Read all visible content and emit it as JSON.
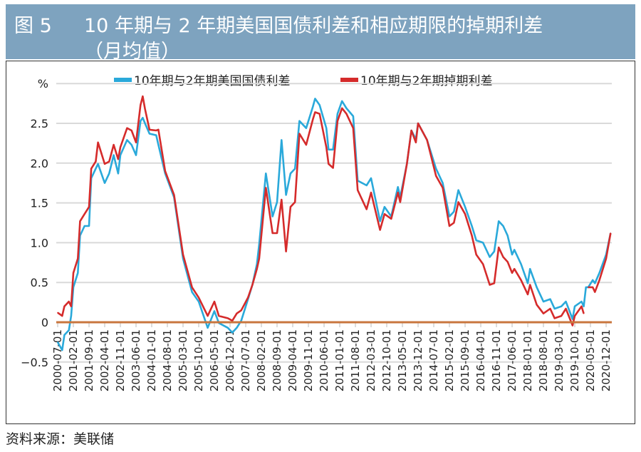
{
  "header": {
    "figure_number": "图 5",
    "title_line1": "10 年期与 2 年期美国国债利差和相应期限的掉期利差",
    "title_line2": "（月均值）"
  },
  "source": "资料来源：美联储",
  "colors": {
    "header_bg": "#7ea3bf",
    "treasury": "#2aa9da",
    "swap": "#d52b2b",
    "zero_line": "#c9763e",
    "grid": "#d9d9d9"
  },
  "chart_data": {
    "type": "line",
    "title": "",
    "xlabel": "",
    "ylabel": "%",
    "ylim": [
      -0.5,
      3.0
    ],
    "yticks": [
      -0.5,
      0,
      0.5,
      1.0,
      1.5,
      2.0,
      2.5
    ],
    "ytick_labels": [
      "−0.5",
      "0",
      "0.5",
      "1.0",
      "1.5",
      "2.0",
      "2.5"
    ],
    "grid": true,
    "legend_position": "top",
    "xtick_labels": [
      "2000-07-01",
      "2001-02-01",
      "2001-09-01",
      "2002-04-01",
      "2002-11-01",
      "2003-06-01",
      "2004-01-01",
      "2004-08-01",
      "2005-03-01",
      "2005-10-01",
      "2006-05-01",
      "2006-12-01",
      "2007-07-01",
      "2008-02-01",
      "2008-09-01",
      "2009-04-01",
      "2009-11-01",
      "2010-06-01",
      "2011-01-01",
      "2011-08-01",
      "2012-03-01",
      "2012-10-01",
      "2013-05-01",
      "2013-12-01",
      "2014-07-01",
      "2015-02-01",
      "2015-09-01",
      "2016-04-01",
      "2016-11-01",
      "2017-06-01",
      "2018-01-01",
      "2018-08-01",
      "2019-03-01",
      "2019-10-01",
      "2020-05-01",
      "2020-12-01"
    ],
    "x": [
      "2000-07",
      "2000-09",
      "2000-10",
      "2000-12",
      "2001-01",
      "2001-02",
      "2001-04",
      "2001-05",
      "2001-07",
      "2001-09",
      "2001-10",
      "2001-12",
      "2002-01",
      "2002-04",
      "2002-06",
      "2002-08",
      "2002-10",
      "2002-11",
      "2003-02",
      "2003-04",
      "2003-06",
      "2003-08",
      "2003-09",
      "2003-10",
      "2003-12",
      "2004-03",
      "2004-04",
      "2004-07",
      "2004-11",
      "2005-03",
      "2005-07",
      "2005-10",
      "2006-02",
      "2006-05",
      "2006-07",
      "2006-11",
      "2007-01",
      "2007-03",
      "2007-05",
      "2007-08",
      "2007-10",
      "2007-12",
      "2008-01",
      "2008-04",
      "2008-07",
      "2008-09",
      "2008-11",
      "2009-01",
      "2009-03",
      "2009-05",
      "2009-07",
      "2009-10",
      "2010-01",
      "2010-02",
      "2010-04",
      "2010-07",
      "2010-08",
      "2010-10",
      "2010-12",
      "2011-02",
      "2011-04",
      "2011-07",
      "2011-09",
      "2012-01",
      "2012-03",
      "2012-07",
      "2012-09",
      "2012-12",
      "2013-03",
      "2013-04",
      "2013-07",
      "2013-09",
      "2013-11",
      "2013-12",
      "2014-04",
      "2014-08",
      "2014-11",
      "2015-02",
      "2015-04",
      "2015-06",
      "2015-09",
      "2015-12",
      "2016-02",
      "2016-05",
      "2016-08",
      "2016-10",
      "2016-12",
      "2017-02",
      "2017-04",
      "2017-06",
      "2017-07",
      "2017-10",
      "2018-01",
      "2018-02",
      "2018-05",
      "2018-08",
      "2018-11",
      "2019-01",
      "2019-04",
      "2019-06",
      "2019-09",
      "2019-10",
      "2020-01",
      "2020-02",
      "2020-03",
      "2020-04",
      "2020-06",
      "2020-07",
      "2020-09",
      "2020-12",
      "2021-02"
    ],
    "series": [
      {
        "name": "10年期与2年期美国国债利差",
        "color": "#2aa9da",
        "values": [
          -0.25,
          -0.35,
          -0.16,
          -0.1,
          0.08,
          0.44,
          0.62,
          1.09,
          1.21,
          1.21,
          1.81,
          1.93,
          1.99,
          1.75,
          1.87,
          2.1,
          1.87,
          2.1,
          2.29,
          2.23,
          2.1,
          2.53,
          2.57,
          2.5,
          2.37,
          2.35,
          2.23,
          1.87,
          1.57,
          0.8,
          0.38,
          0.26,
          -0.07,
          0.14,
          -0.01,
          -0.07,
          -0.13,
          -0.07,
          0.02,
          0.29,
          0.47,
          0.73,
          0.98,
          1.87,
          1.33,
          1.51,
          2.29,
          1.6,
          1.87,
          1.93,
          2.53,
          2.44,
          2.71,
          2.81,
          2.73,
          2.44,
          2.17,
          2.17,
          2.62,
          2.78,
          2.69,
          2.59,
          1.78,
          1.72,
          1.81,
          1.27,
          1.45,
          1.33,
          1.7,
          1.57,
          1.99,
          2.41,
          2.3,
          2.5,
          2.29,
          1.93,
          1.75,
          1.33,
          1.39,
          1.66,
          1.45,
          1.21,
          1.03,
          1.0,
          0.82,
          0.89,
          1.27,
          1.21,
          1.09,
          0.85,
          0.91,
          0.73,
          0.49,
          0.67,
          0.44,
          0.26,
          0.29,
          0.17,
          0.2,
          0.26,
          0.04,
          0.2,
          0.26,
          0.2,
          0.44,
          0.44,
          0.53,
          0.49,
          0.62,
          0.85,
          1.12
        ]
      },
      {
        "name": "10年期与2年期掉期利差",
        "color": "#d52b2b",
        "values": [
          0.12,
          0.08,
          0.2,
          0.26,
          0.2,
          0.62,
          0.8,
          1.27,
          1.36,
          1.45,
          1.93,
          2.02,
          2.26,
          1.99,
          2.02,
          2.23,
          2.05,
          2.2,
          2.44,
          2.41,
          2.26,
          2.73,
          2.84,
          2.68,
          2.42,
          2.41,
          2.42,
          1.9,
          1.6,
          0.85,
          0.44,
          0.31,
          0.08,
          0.26,
          0.08,
          0.05,
          0.02,
          0.11,
          0.15,
          0.31,
          0.47,
          0.67,
          0.8,
          1.69,
          1.12,
          1.12,
          1.54,
          0.89,
          1.45,
          1.51,
          2.37,
          2.23,
          2.55,
          2.64,
          2.62,
          2.2,
          1.99,
          1.94,
          2.53,
          2.69,
          2.62,
          2.44,
          1.66,
          1.42,
          1.63,
          1.16,
          1.36,
          1.3,
          1.63,
          1.51,
          1.99,
          2.41,
          2.26,
          2.5,
          2.29,
          1.84,
          1.69,
          1.21,
          1.25,
          1.51,
          1.36,
          1.09,
          0.85,
          0.73,
          0.47,
          0.49,
          0.94,
          0.82,
          0.76,
          0.62,
          0.67,
          0.53,
          0.35,
          0.47,
          0.22,
          0.11,
          0.17,
          0.05,
          0.08,
          0.17,
          -0.04,
          0.08,
          0.2,
          0.11,
          null,
          0.44,
          0.44,
          0.38,
          0.53,
          0.8,
          1.12
        ]
      }
    ]
  }
}
